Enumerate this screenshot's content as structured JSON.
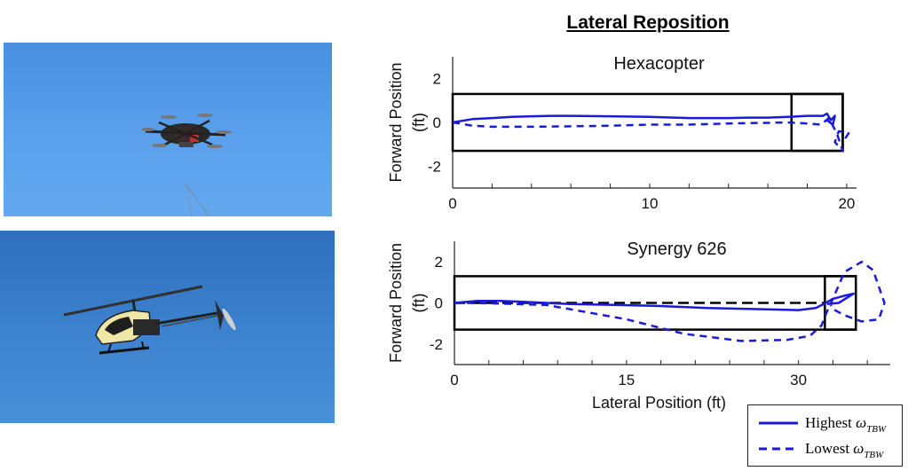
{
  "figure_title": "Lateral Reposition",
  "legend": {
    "highest": {
      "word": "Highest",
      "symbol": "ω",
      "subscript": "TBW"
    },
    "lowest": {
      "word": "Lowest",
      "symbol": "ω",
      "subscript": "TBW"
    }
  },
  "photos": {
    "top": {
      "subject": "hexacopter-drone",
      "sky_color": "#5a9ce8"
    },
    "bottom": {
      "subject": "rc-helicopter",
      "sky_color": "#3b80cc"
    }
  },
  "colors": {
    "line": "#1a1adc",
    "box": "#000000",
    "reference": "#000000"
  },
  "chart_data": [
    {
      "type": "line",
      "title": "Hexacopter",
      "xlabel": "",
      "ylabel": "Forward  Position (ft)",
      "xlim": [
        0,
        20.5
      ],
      "ylim": [
        -3,
        3
      ],
      "xticks": [
        0,
        10,
        20
      ],
      "yticks": [
        -2,
        0,
        2
      ],
      "boxes": [
        {
          "x": [
            0,
            19.8
          ],
          "y": [
            -1.3,
            1.3
          ]
        },
        {
          "x": [
            17.2,
            19.8
          ],
          "y": [
            -1.3,
            1.3
          ]
        }
      ],
      "series": [
        {
          "style": "solid",
          "x": [
            0,
            1,
            2,
            3,
            4,
            5,
            6,
            8,
            10,
            12,
            14,
            15,
            16,
            17,
            18,
            18.8,
            19.0,
            19.2,
            19.4,
            19.3,
            19.0,
            19.2
          ],
          "y": [
            0,
            0.15,
            0.2,
            0.25,
            0.28,
            0.3,
            0.3,
            0.28,
            0.25,
            0.2,
            0.2,
            0.22,
            0.22,
            0.25,
            0.3,
            0.3,
            0.4,
            0.1,
            0.3,
            -0.1,
            0.1,
            0.2
          ]
        },
        {
          "style": "dashed",
          "x": [
            0,
            1,
            2,
            4,
            6,
            8,
            10,
            12,
            14,
            16,
            17,
            18,
            18.7,
            19.1,
            19.5,
            19.8,
            19.4,
            19.6,
            20.1,
            19.8
          ],
          "y": [
            0,
            -0.15,
            -0.2,
            -0.2,
            -0.18,
            -0.15,
            -0.1,
            -0.1,
            -0.05,
            -0.02,
            0,
            -0.05,
            -0.1,
            0.2,
            -0.5,
            -1.3,
            -0.9,
            -0.4,
            -0.5,
            -0.9
          ]
        }
      ]
    },
    {
      "type": "line",
      "title": "Synergy 626",
      "xlabel": "Lateral Position (ft)",
      "ylabel": "Forward  Position (ft)",
      "xlim": [
        0,
        38
      ],
      "ylim": [
        -3,
        3
      ],
      "xticks": [
        0,
        15,
        30
      ],
      "yticks": [
        -2,
        0,
        2
      ],
      "boxes": [
        {
          "x": [
            0,
            35
          ],
          "y": [
            -1.3,
            1.3
          ]
        },
        {
          "x": [
            32.3,
            35
          ],
          "y": [
            -1.3,
            1.3
          ]
        }
      ],
      "reference": {
        "x": [
          0,
          32.3
        ],
        "y": [
          0,
          0
        ]
      },
      "series": [
        {
          "style": "solid",
          "x": [
            0,
            2,
            4,
            6,
            8,
            10,
            14,
            18,
            22,
            26,
            30,
            31.5,
            32.2,
            33,
            34,
            34.8,
            33.5,
            32.5
          ],
          "y": [
            0,
            0.1,
            0.1,
            0.05,
            0,
            -0.05,
            -0.1,
            -0.15,
            -0.25,
            -0.3,
            -0.35,
            -0.25,
            -0.05,
            0.2,
            0.35,
            0.45,
            0.0,
            -0.05
          ]
        },
        {
          "style": "dashed",
          "x": [
            0,
            2,
            5,
            8,
            10,
            15,
            20,
            25,
            29,
            31,
            32,
            32.5,
            33,
            34,
            35.5,
            36.5,
            37.5,
            37,
            35.5,
            34,
            33,
            32.8
          ],
          "y": [
            0,
            0,
            -0.05,
            -0.1,
            -0.3,
            -0.8,
            -1.5,
            -1.85,
            -1.8,
            -1.6,
            -1.1,
            -0.4,
            0.2,
            1.5,
            2.0,
            1.6,
            0.0,
            -0.8,
            -0.9,
            -0.6,
            -0.3,
            -0.1
          ]
        }
      ]
    }
  ]
}
